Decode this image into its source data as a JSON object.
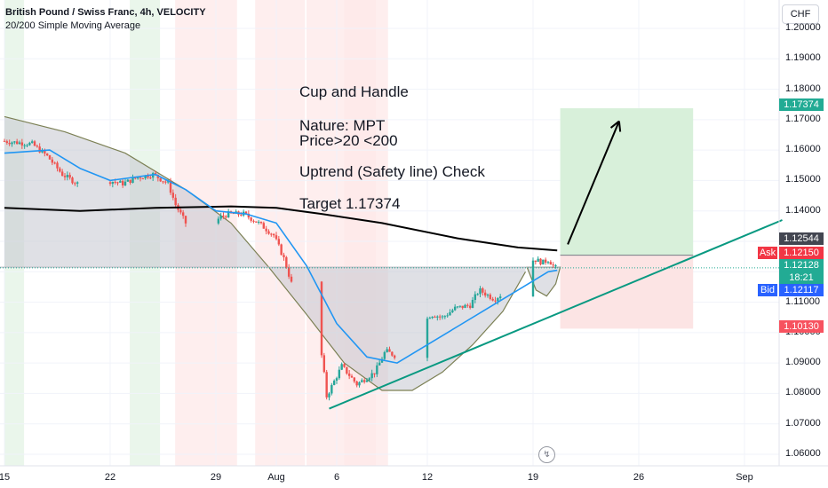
{
  "header": {
    "title": "British Pound / Swiss Franc, 4h, VELOCITY",
    "indicator": "20/200 Simple Moving Average"
  },
  "currency_button": "CHF",
  "annotations": {
    "line1": "Cup and Handle",
    "line2": "Nature: MPT",
    "line3": "Price>20 <200",
    "line4": "Uptrend (Safety line) Check",
    "line5": "Target 1.17374"
  },
  "price_tags": {
    "target": "1.17374",
    "entry": "1.12544",
    "ask_label": "Ask",
    "ask_value": "1.12150",
    "last_value": "1.12128",
    "countdown": "18:21",
    "bid_label": "Bid",
    "bid_value": "1.12117",
    "stop": "1.10130"
  },
  "colors": {
    "up": "#26a69a",
    "down": "#ef5350",
    "sma20": "#2196f3",
    "sma200": "#000000",
    "trendline": "#089981",
    "profit_zone": "#d8f0da",
    "loss_zone": "#fce4e4",
    "target_tag": "#22ab94",
    "entry_tag": "#434651",
    "stop_tag": "#f7525f",
    "ask_tag": "#f23645",
    "bid_tag": "#2962ff",
    "last_tag": "#22ab94"
  },
  "chart_data": {
    "type": "candlestick",
    "symbol": "GBPCHF",
    "timeframe": "4h",
    "yaxis": {
      "ticks": [
        "1.06000",
        "1.07000",
        "1.08000",
        "1.09000",
        "1.10000",
        "1.11000",
        "1.12000",
        "1.13000",
        "1.14000",
        "1.15000",
        "1.16000",
        "1.17000",
        "1.18000",
        "1.19000",
        "1.20000"
      ],
      "ylim": [
        1.0572,
        1.2039
      ]
    },
    "xaxis": {
      "ticks": [
        "15",
        "22",
        "29",
        "Aug",
        "6",
        "12",
        "19",
        "26",
        "Sep"
      ]
    },
    "price_path": [
      {
        "d": 0,
        "p": 1.163
      },
      {
        "d": 2,
        "p": 1.162
      },
      {
        "d": 3,
        "p": 1.158
      },
      {
        "d": 4,
        "p": 1.152
      },
      {
        "d": 5,
        "p": 1.149
      },
      {
        "d": 6,
        "p": 1.148
      },
      {
        "d": 7,
        "p": 1.15
      },
      {
        "d": 8,
        "p": 1.149
      },
      {
        "d": 9,
        "p": 1.151
      },
      {
        "d": 10,
        "p": 1.152
      },
      {
        "d": 11,
        "p": 1.149
      },
      {
        "d": 11.5,
        "p": 1.142
      },
      {
        "d": 12.5,
        "p": 1.133
      },
      {
        "d": 13.5,
        "p": 1.134
      },
      {
        "d": 14.5,
        "p": 1.138
      },
      {
        "d": 15,
        "p": 1.139
      },
      {
        "d": 16,
        "p": 1.139
      },
      {
        "d": 17,
        "p": 1.136
      },
      {
        "d": 18,
        "p": 1.132
      },
      {
        "d": 18.7,
        "p": 1.124
      },
      {
        "d": 19.3,
        "p": 1.114
      },
      {
        "d": 20.3,
        "p": 1.103
      },
      {
        "d": 21.2,
        "p": 1.092
      },
      {
        "d": 21.5,
        "p": 1.079
      },
      {
        "d": 22,
        "p": 1.084
      },
      {
        "d": 22.5,
        "p": 1.089
      },
      {
        "d": 23.5,
        "p": 1.083
      },
      {
        "d": 24.7,
        "p": 1.087
      },
      {
        "d": 25.4,
        "p": 1.094
      },
      {
        "d": 26.2,
        "p": 1.092
      },
      {
        "d": 26.7,
        "p": 1.088
      },
      {
        "d": 27.2,
        "p": 1.093
      },
      {
        "d": 27.6,
        "p": 1.101
      },
      {
        "d": 28.4,
        "p": 1.106
      },
      {
        "d": 29.2,
        "p": 1.105
      },
      {
        "d": 30,
        "p": 1.108
      },
      {
        "d": 31,
        "p": 1.109
      },
      {
        "d": 31.6,
        "p": 1.114
      },
      {
        "d": 32.6,
        "p": 1.111
      },
      {
        "d": 33.2,
        "p": 1.113
      },
      {
        "d": 33.8,
        "p": 1.117
      },
      {
        "d": 34.3,
        "p": 1.123
      },
      {
        "d": 35.3,
        "p": 1.124
      },
      {
        "d": 35.8,
        "p": 1.123
      },
      {
        "d": 36.2,
        "p": 1.124
      },
      {
        "d": 36.6,
        "p": 1.1213
      }
    ],
    "sma20": [
      {
        "d": 0,
        "p": 1.159
      },
      {
        "d": 3,
        "p": 1.16
      },
      {
        "d": 5,
        "p": 1.154
      },
      {
        "d": 7,
        "p": 1.15
      },
      {
        "d": 10,
        "p": 1.152
      },
      {
        "d": 12,
        "p": 1.147
      },
      {
        "d": 14,
        "p": 1.14
      },
      {
        "d": 16,
        "p": 1.139
      },
      {
        "d": 18,
        "p": 1.136
      },
      {
        "d": 20,
        "p": 1.122
      },
      {
        "d": 22,
        "p": 1.103
      },
      {
        "d": 24,
        "p": 1.092
      },
      {
        "d": 26,
        "p": 1.09
      },
      {
        "d": 28,
        "p": 1.096
      },
      {
        "d": 30,
        "p": 1.102
      },
      {
        "d": 32,
        "p": 1.108
      },
      {
        "d": 34,
        "p": 1.114
      },
      {
        "d": 36,
        "p": 1.12
      },
      {
        "d": 36.6,
        "p": 1.1205
      }
    ],
    "sma200": [
      {
        "d": 0,
        "p": 1.141
      },
      {
        "d": 5,
        "p": 1.14
      },
      {
        "d": 10,
        "p": 1.141
      },
      {
        "d": 15,
        "p": 1.1415
      },
      {
        "d": 18,
        "p": 1.141
      },
      {
        "d": 21,
        "p": 1.139
      },
      {
        "d": 25,
        "p": 1.136
      },
      {
        "d": 30,
        "p": 1.131
      },
      {
        "d": 34,
        "p": 1.128
      },
      {
        "d": 36.6,
        "p": 1.127
      }
    ],
    "cup": [
      {
        "d": 0,
        "p": 1.171
      },
      {
        "d": 4,
        "p": 1.166
      },
      {
        "d": 8,
        "p": 1.159
      },
      {
        "d": 12,
        "p": 1.147
      },
      {
        "d": 15,
        "p": 1.136
      },
      {
        "d": 17.5,
        "p": 1.1215
      },
      {
        "d": 20,
        "p": 1.106
      },
      {
        "d": 22.5,
        "p": 1.09
      },
      {
        "d": 25,
        "p": 1.081
      },
      {
        "d": 27,
        "p": 1.081
      },
      {
        "d": 29,
        "p": 1.087
      },
      {
        "d": 31,
        "p": 1.096
      },
      {
        "d": 33,
        "p": 1.107
      },
      {
        "d": 34.5,
        "p": 1.12
      }
    ],
    "handle": [
      {
        "d": 34.6,
        "p": 1.1215
      },
      {
        "d": 35.2,
        "p": 1.114
      },
      {
        "d": 35.9,
        "p": 1.112
      },
      {
        "d": 36.5,
        "p": 1.116
      },
      {
        "d": 36.8,
        "p": 1.1215
      }
    ],
    "cup_rim_level": 1.1215,
    "trendline": {
      "from": {
        "d": 21.5,
        "p": 1.075
      },
      "to": {
        "d": 51.5,
        "p": 1.137
      }
    },
    "position": {
      "entry": 1.12544,
      "target": 1.17374,
      "stop": 1.1013,
      "from_d": 36.8,
      "to_d": 45.6
    },
    "arrow": {
      "from": {
        "d": 37.3,
        "p": 1.129
      },
      "to": {
        "d": 40.7,
        "p": 1.1695
      }
    },
    "session_bands": [
      {
        "from_d": 0,
        "to_d": 1.3,
        "kind": "green"
      },
      {
        "from_d": 8.3,
        "to_d": 10.3,
        "kind": "green"
      },
      {
        "from_d": 11.3,
        "to_d": 15.4,
        "kind": "red"
      },
      {
        "from_d": 16.6,
        "to_d": 19.9,
        "kind": "red"
      },
      {
        "from_d": 20,
        "to_d": 25.4,
        "kind": "red"
      },
      {
        "from_d": 22.5,
        "to_d": 24.6,
        "kind": "red"
      }
    ]
  }
}
